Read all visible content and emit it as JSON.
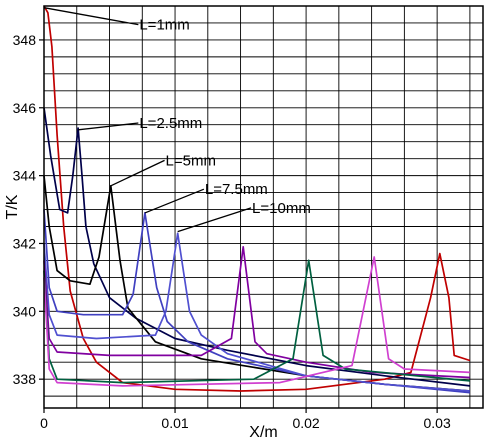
{
  "chart_data": {
    "type": "line",
    "title": "",
    "xlabel": "X/m",
    "ylabel": "T/K",
    "xlim": [
      0,
      0.0335
    ],
    "ylim": [
      337.15,
      349.0
    ],
    "grid": true,
    "x_ticks": [
      0,
      0.01,
      0.02,
      0.03
    ],
    "x_tick_labels": [
      "0",
      "0.01",
      "0.02",
      "0.03"
    ],
    "y_ticks": [
      338,
      340,
      342,
      344,
      346,
      348
    ],
    "y_tick_labels": [
      "338",
      "340",
      "342",
      "344",
      "346",
      "348"
    ],
    "series": [
      {
        "color": "#c00000",
        "points": [
          [
            0,
            349.0
          ],
          [
            0.0003,
            348.8
          ],
          [
            0.0006,
            347.8
          ],
          [
            0.001,
            345.2
          ],
          [
            0.0015,
            342.5
          ],
          [
            0.002,
            340.6
          ],
          [
            0.003,
            339.2
          ],
          [
            0.004,
            338.5
          ],
          [
            0.006,
            337.9
          ],
          [
            0.01,
            337.7
          ],
          [
            0.015,
            337.65
          ],
          [
            0.02,
            337.7
          ],
          [
            0.026,
            338.0
          ],
          [
            0.028,
            338.2
          ],
          [
            0.0295,
            340.4
          ],
          [
            0.0302,
            341.7
          ],
          [
            0.0309,
            340.4
          ],
          [
            0.0313,
            338.7
          ],
          [
            0.0325,
            338.55
          ]
        ]
      },
      {
        "color": "#00004a",
        "points": [
          [
            0,
            346.0
          ],
          [
            0.0005,
            344.6
          ],
          [
            0.0012,
            343.0
          ],
          [
            0.0018,
            342.9
          ],
          [
            0.0022,
            344.0
          ],
          [
            0.0026,
            345.4
          ],
          [
            0.0029,
            344.0
          ],
          [
            0.0032,
            342.5
          ],
          [
            0.0038,
            341.4
          ],
          [
            0.005,
            340.4
          ],
          [
            0.007,
            339.8
          ],
          [
            0.01,
            339.2
          ],
          [
            0.014,
            338.85
          ],
          [
            0.02,
            338.4
          ],
          [
            0.026,
            338.1
          ],
          [
            0.0325,
            337.8
          ]
        ]
      },
      {
        "color": "#000000",
        "points": [
          [
            0,
            344.0
          ],
          [
            0.0004,
            342.5
          ],
          [
            0.001,
            341.2
          ],
          [
            0.002,
            340.9
          ],
          [
            0.0035,
            340.8
          ],
          [
            0.0042,
            341.6
          ],
          [
            0.0051,
            343.7
          ],
          [
            0.0058,
            341.5
          ],
          [
            0.0064,
            340.1
          ],
          [
            0.0085,
            339.1
          ],
          [
            0.012,
            338.6
          ],
          [
            0.016,
            338.35
          ],
          [
            0.02,
            338.1
          ],
          [
            0.026,
            337.85
          ],
          [
            0.0325,
            337.65
          ]
        ]
      },
      {
        "color": "#4040c0",
        "points": [
          [
            0,
            343.0
          ],
          [
            0.0004,
            340.7
          ],
          [
            0.001,
            340.0
          ],
          [
            0.003,
            339.9
          ],
          [
            0.006,
            339.9
          ],
          [
            0.0068,
            340.5
          ],
          [
            0.0077,
            342.9
          ],
          [
            0.0086,
            340.7
          ],
          [
            0.0094,
            339.7
          ],
          [
            0.011,
            339.1
          ],
          [
            0.014,
            338.6
          ],
          [
            0.02,
            338.1
          ],
          [
            0.026,
            337.85
          ],
          [
            0.0325,
            337.6
          ]
        ]
      },
      {
        "color": "#5050d0",
        "points": [
          [
            0,
            342.0
          ],
          [
            0.0004,
            339.9
          ],
          [
            0.001,
            339.3
          ],
          [
            0.004,
            339.2
          ],
          [
            0.0085,
            339.3
          ],
          [
            0.0093,
            340.0
          ],
          [
            0.0102,
            342.3
          ],
          [
            0.0111,
            340.0
          ],
          [
            0.012,
            339.3
          ],
          [
            0.014,
            338.75
          ],
          [
            0.02,
            338.1
          ],
          [
            0.026,
            337.85
          ],
          [
            0.0325,
            337.65
          ]
        ]
      },
      {
        "color": "#8000a0",
        "points": [
          [
            0,
            341.5
          ],
          [
            0.0004,
            339.2
          ],
          [
            0.001,
            338.8
          ],
          [
            0.005,
            338.7
          ],
          [
            0.012,
            338.7
          ],
          [
            0.0143,
            339.2
          ],
          [
            0.0152,
            341.9
          ],
          [
            0.0161,
            339.1
          ],
          [
            0.017,
            338.75
          ],
          [
            0.02,
            338.5
          ],
          [
            0.025,
            338.2
          ],
          [
            0.0325,
            338.05
          ]
        ]
      },
      {
        "color": "#006040",
        "points": [
          [
            0,
            341.2
          ],
          [
            0.0004,
            338.6
          ],
          [
            0.001,
            338.0
          ],
          [
            0.006,
            337.9
          ],
          [
            0.016,
            338.0
          ],
          [
            0.019,
            338.6
          ],
          [
            0.0202,
            341.5
          ],
          [
            0.0213,
            338.7
          ],
          [
            0.023,
            338.3
          ],
          [
            0.0325,
            337.95
          ]
        ]
      },
      {
        "color": "#d040d0",
        "points": [
          [
            0,
            341.0
          ],
          [
            0.0004,
            338.3
          ],
          [
            0.001,
            337.9
          ],
          [
            0.006,
            337.8
          ],
          [
            0.018,
            337.9
          ],
          [
            0.0235,
            338.4
          ],
          [
            0.0252,
            341.6
          ],
          [
            0.0263,
            338.6
          ],
          [
            0.0275,
            338.3
          ],
          [
            0.0325,
            338.2
          ]
        ]
      }
    ],
    "annotations": [
      {
        "text": "L=1mm",
        "anchor": [
          0.0,
          348.95
        ],
        "label": [
          0.0072,
          348.45
        ]
      },
      {
        "text": "L=2.5mm",
        "anchor": [
          0.0026,
          345.35
        ],
        "label": [
          0.0072,
          345.55
        ]
      },
      {
        "text": "L=5mm",
        "anchor": [
          0.0051,
          343.7
        ],
        "label": [
          0.0092,
          344.45
        ]
      },
      {
        "text": "L=7.5mm",
        "anchor": [
          0.0077,
          342.9
        ],
        "label": [
          0.0122,
          343.6
        ]
      },
      {
        "text": "L=10mm",
        "anchor": [
          0.0102,
          342.35
        ],
        "label": [
          0.0158,
          343.05
        ]
      }
    ]
  }
}
